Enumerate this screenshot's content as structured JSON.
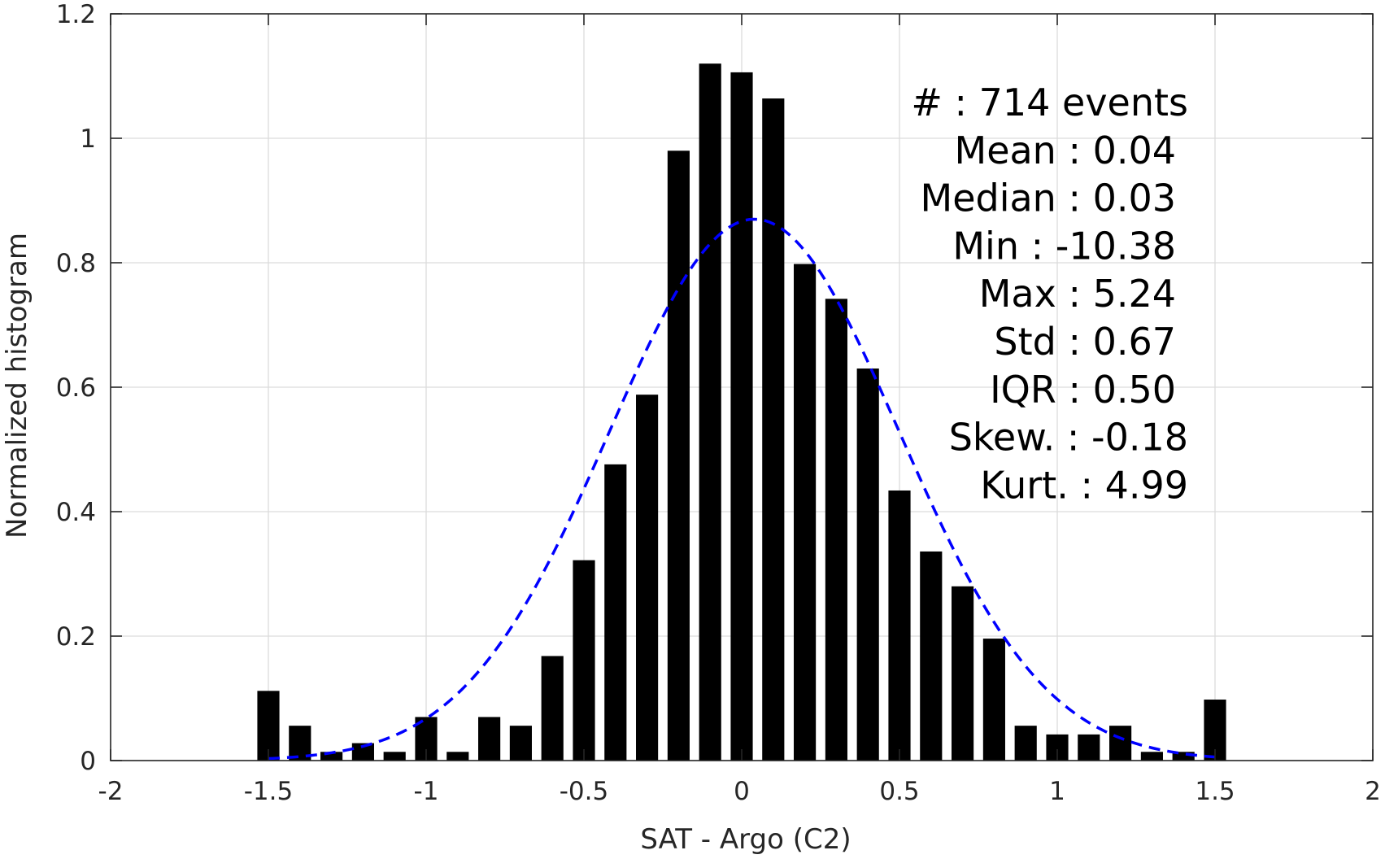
{
  "chart_data": {
    "type": "bar",
    "title": "",
    "xlabel": "SAT - Argo (C2)",
    "ylabel": "Normalized histogram",
    "xlim": [
      -2,
      2
    ],
    "ylim": [
      0,
      1.2
    ],
    "xticks": [
      -2,
      -1.5,
      -1,
      -0.5,
      0,
      0.5,
      1,
      1.5,
      2
    ],
    "xtick_labels": [
      "-2",
      "-1.5",
      "-1",
      "-0.5",
      "0",
      "0.5",
      "1",
      "1.5",
      "2"
    ],
    "yticks": [
      0,
      0.2,
      0.4,
      0.6,
      0.8,
      1,
      1.2
    ],
    "ytick_labels": [
      "0",
      "0.2",
      "0.4",
      "0.6",
      "0.8",
      "1",
      "1.2"
    ],
    "grid": true,
    "bar_width": 0.07,
    "x": [
      -1.5,
      -1.4,
      -1.3,
      -1.2,
      -1.1,
      -1.0,
      -0.9,
      -0.8,
      -0.7,
      -0.6,
      -0.5,
      -0.4,
      -0.3,
      -0.2,
      -0.1,
      0.0,
      0.1,
      0.2,
      0.3,
      0.4,
      0.5,
      0.6,
      0.7,
      0.8,
      0.9,
      1.0,
      1.1,
      1.2,
      1.3,
      1.4,
      1.5
    ],
    "values": [
      0.112,
      0.056,
      0.014,
      0.028,
      0.014,
      0.07,
      0.014,
      0.07,
      0.056,
      0.168,
      0.322,
      0.476,
      0.588,
      0.98,
      1.12,
      1.106,
      1.064,
      0.798,
      0.742,
      0.63,
      0.434,
      0.336,
      0.28,
      0.196,
      0.056,
      0.042,
      0.042,
      0.056,
      0.014,
      0.014,
      0.098
    ],
    "bar_color": "#000000",
    "fit_curve": {
      "style": "dashed",
      "color": "#0000ff",
      "mean": 0.04,
      "std": 0.46,
      "peak": 0.87,
      "x_range": [
        -1.5,
        1.5
      ]
    },
    "stats_lines": [
      {
        "key": "count",
        "text": "#  : 714 events"
      },
      {
        "key": "mean",
        "text": "Mean : 0.04"
      },
      {
        "key": "median",
        "text": "Median : 0.03"
      },
      {
        "key": "min",
        "text": "Min : -10.38"
      },
      {
        "key": "max",
        "text": "Max : 5.24"
      },
      {
        "key": "std",
        "text": "Std : 0.67"
      },
      {
        "key": "iqr",
        "text": "IQR : 0.50"
      },
      {
        "key": "skew",
        "text": "Skew. : -0.18"
      },
      {
        "key": "kurt",
        "text": "Kurt. : 4.99"
      }
    ]
  }
}
